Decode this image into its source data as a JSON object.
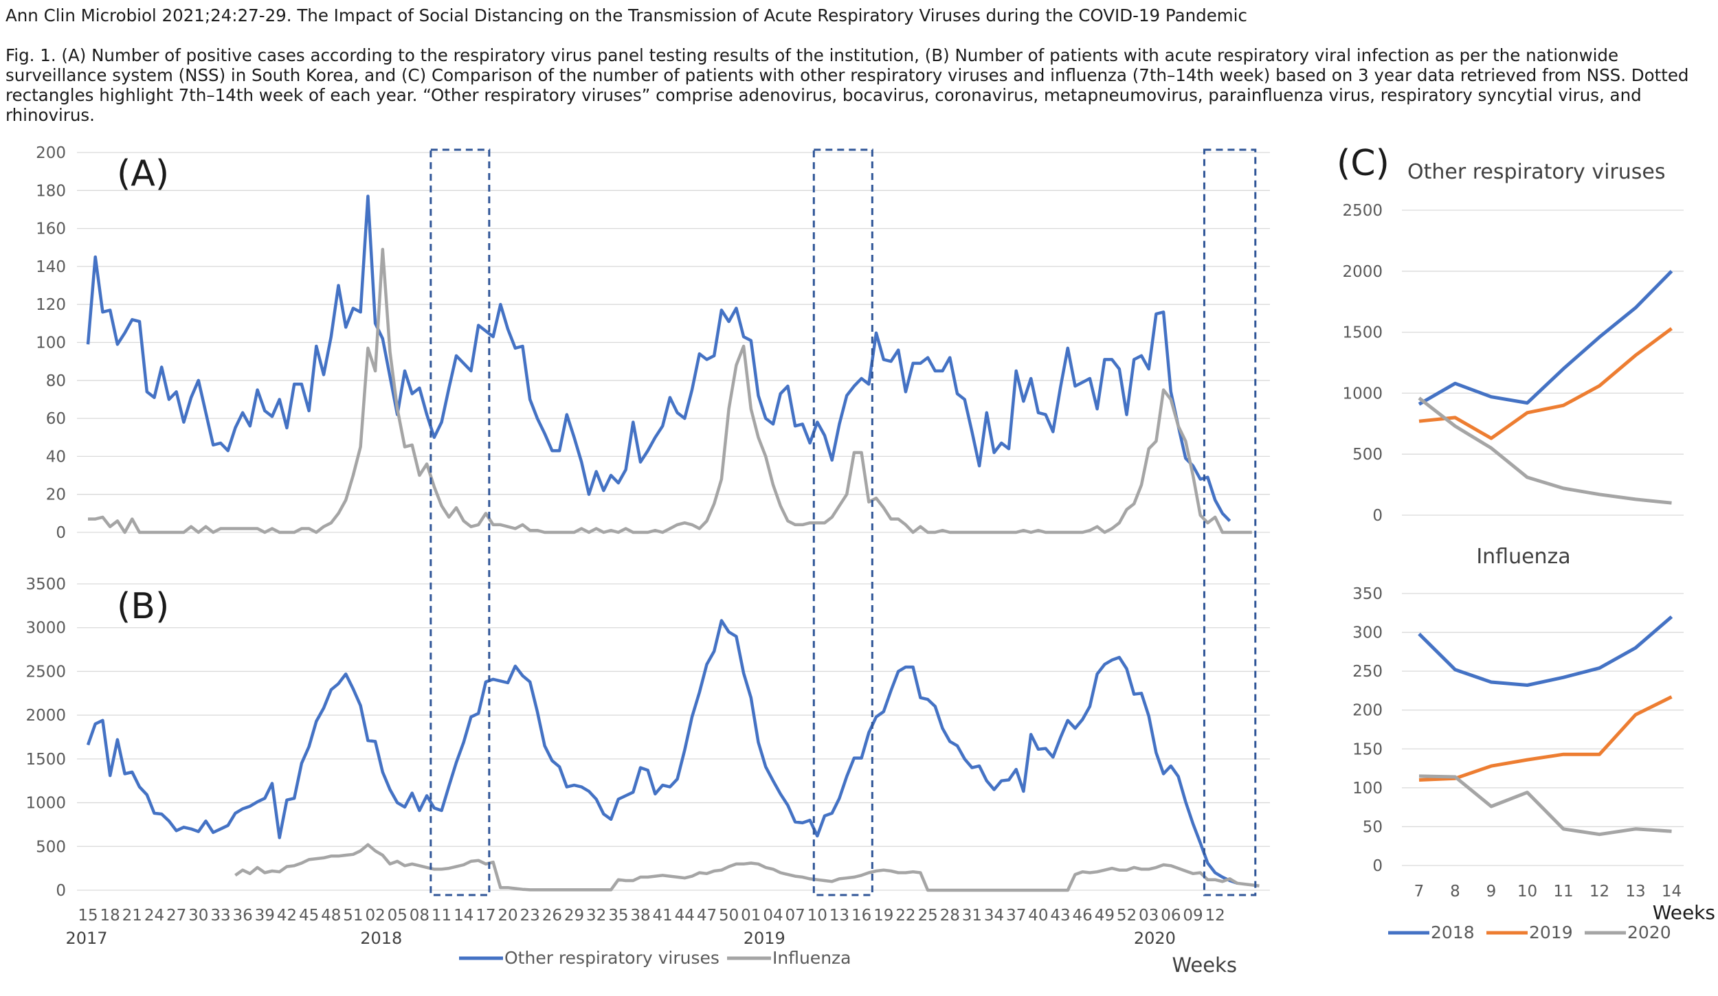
{
  "header": {
    "journal_line": "Ann Clin Microbiol 2021;24:27-29. The Impact of Social Distancing on the Transmission of Acute Respiratory Viruses during the COVID-19 Pandemic",
    "caption": "Fig. 1. (A) Number of positive cases according to the respiratory virus panel testing results of the institution, (B) Number of patients with acute respiratory viral infection as per the nationwide surveillance system (NSS) in South Korea, and (C) Comparison of the number of patients with other respiratory viruses and influenza (7th–14th week) based on 3 year data retrieved from NSS. Dotted rectangles highlight 7th–14th week of each year. “Other respiratory viruses” comprise adenovirus, bocavirus, coronavirus, metapneumovirus, parainfluenza virus, respiratory syncytial virus, and rhinovirus."
  },
  "colors": {
    "other": "#4472c4",
    "influenza": "#a5a5a5",
    "y2018": "#4472c4",
    "y2019": "#ed7d31",
    "y2020": "#a5a5a5",
    "highlight": "#2f5597"
  },
  "legend_ab": {
    "other": "Other respiratory viruses",
    "influenza": "Influenza"
  },
  "axis_x_title": "Weeks",
  "x_week_labels": [
    "15",
    "18",
    "21",
    "24",
    "27",
    "30",
    "33",
    "36",
    "39",
    "42",
    "45",
    "48",
    "51",
    "02",
    "05",
    "08",
    "11",
    "14",
    "17",
    "20",
    "23",
    "26",
    "29",
    "32",
    "35",
    "38",
    "41",
    "44",
    "47",
    "50",
    "01",
    "04",
    "07",
    "10",
    "13",
    "16",
    "19",
    "22",
    "25",
    "28",
    "31",
    "34",
    "37",
    "40",
    "43",
    "46",
    "49",
    "52",
    "03",
    "06",
    "09",
    "12"
  ],
  "x_year_labels": [
    {
      "label": "2017",
      "week_index": 0
    },
    {
      "label": "2018",
      "week_index": 40
    },
    {
      "label": "2019",
      "week_index": 92
    },
    {
      "label": "2020",
      "week_index": 145
    }
  ],
  "highlight_week_ranges": [
    [
      47,
      54
    ],
    [
      99,
      106
    ],
    [
      152,
      158
    ]
  ],
  "chart_data": [
    {
      "type": "line",
      "panel": "(A)",
      "x_start": "2017 week 15",
      "ylim": [
        0,
        200
      ],
      "yticks": [
        0,
        20,
        40,
        60,
        80,
        100,
        120,
        140,
        160,
        180,
        200
      ],
      "series": [
        {
          "name": "Other respiratory viruses",
          "values": [
            99,
            145,
            116,
            117,
            99,
            105,
            112,
            111,
            74,
            71,
            87,
            70,
            74,
            58,
            71,
            80,
            63,
            46,
            47,
            43,
            55,
            63,
            56,
            75,
            64,
            61,
            70,
            55,
            78,
            78,
            64,
            98,
            83,
            103,
            130,
            108,
            118,
            116,
            177,
            110,
            102,
            82,
            62,
            85,
            73,
            76,
            62,
            50,
            58,
            76,
            93,
            89,
            85,
            109,
            106,
            103,
            120,
            107,
            97,
            98,
            70,
            60,
            52,
            43,
            43,
            62,
            50,
            37,
            20,
            32,
            22,
            30,
            26,
            33,
            58,
            37,
            43,
            50,
            56,
            71,
            63,
            60,
            75,
            94,
            91,
            93,
            117,
            111,
            118,
            103,
            101,
            72,
            60,
            57,
            73,
            77,
            56,
            57,
            47,
            58,
            51,
            38,
            57,
            72,
            77,
            81,
            78,
            105,
            91,
            90,
            96,
            74,
            89,
            89,
            92,
            85,
            85,
            92,
            73,
            70,
            53,
            35,
            63,
            42,
            47,
            44,
            85,
            69,
            81,
            63,
            62,
            53,
            76,
            97,
            77,
            79,
            81,
            65,
            91,
            91,
            86,
            62,
            91,
            93,
            86,
            115,
            116,
            74,
            56,
            39,
            35,
            28,
            29,
            17,
            10,
            6
          ]
        },
        {
          "name": "Influenza",
          "values": [
            7,
            7,
            8,
            3,
            6,
            0,
            7,
            0,
            0,
            0,
            0,
            0,
            0,
            0,
            3,
            0,
            3,
            0,
            2,
            2,
            2,
            2,
            2,
            2,
            0,
            2,
            0,
            0,
            0,
            2,
            2,
            0,
            3,
            5,
            10,
            17,
            30,
            45,
            97,
            85,
            149,
            95,
            65,
            45,
            46,
            30,
            36,
            24,
            14,
            8,
            13,
            6,
            3,
            4,
            10,
            4,
            4,
            3,
            2,
            4,
            1,
            1,
            0,
            0,
            0,
            0,
            0,
            2,
            0,
            2,
            0,
            1,
            0,
            2,
            0,
            0,
            0,
            1,
            0,
            2,
            4,
            5,
            4,
            2,
            6,
            15,
            28,
            65,
            88,
            98,
            65,
            50,
            40,
            25,
            14,
            6,
            4,
            4,
            5,
            5,
            5,
            8,
            14,
            20,
            42,
            42,
            16,
            18,
            13,
            7,
            7,
            4,
            0,
            3,
            0,
            0,
            1,
            0,
            0,
            0,
            0,
            0,
            0,
            0,
            0,
            0,
            0,
            1,
            0,
            1,
            0,
            0,
            0,
            0,
            0,
            0,
            1,
            3,
            0,
            2,
            5,
            12,
            15,
            25,
            44,
            48,
            75,
            70,
            56,
            48,
            30,
            9,
            5,
            8,
            0,
            0,
            0,
            0,
            0
          ]
        }
      ]
    },
    {
      "type": "line",
      "panel": "(B)",
      "x_start": "2017 week 15",
      "ylim": [
        0,
        3500
      ],
      "yticks": [
        0,
        500,
        1000,
        1500,
        2000,
        2500,
        3000,
        3500
      ],
      "series": [
        {
          "name": "Other respiratory viruses",
          "values": [
            1660,
            1900,
            1940,
            1310,
            1720,
            1330,
            1350,
            1180,
            1090,
            880,
            870,
            790,
            680,
            720,
            700,
            670,
            790,
            660,
            700,
            740,
            880,
            930,
            960,
            1010,
            1050,
            1220,
            600,
            1030,
            1050,
            1450,
            1640,
            1930,
            2080,
            2290,
            2360,
            2470,
            2300,
            2110,
            1710,
            1700,
            1350,
            1150,
            1000,
            950,
            1110,
            910,
            1080,
            940,
            910,
            1190,
            1460,
            1690,
            1980,
            2020,
            2380,
            2410,
            2390,
            2370,
            2560,
            2450,
            2380,
            2040,
            1650,
            1480,
            1410,
            1180,
            1200,
            1180,
            1130,
            1040,
            870,
            810,
            1040,
            1080,
            1120,
            1400,
            1370,
            1100,
            1200,
            1180,
            1270,
            1600,
            1980,
            2260,
            2580,
            2730,
            3080,
            2950,
            2900,
            2480,
            2200,
            1690,
            1410,
            1250,
            1100,
            970,
            780,
            770,
            800,
            620,
            850,
            880,
            1050,
            1300,
            1510,
            1510,
            1800,
            1980,
            2040,
            2280,
            2500,
            2550,
            2550,
            2200,
            2180,
            2100,
            1850,
            1700,
            1650,
            1500,
            1400,
            1420,
            1250,
            1150,
            1250,
            1260,
            1380,
            1130,
            1780,
            1610,
            1620,
            1520,
            1740,
            1940,
            1850,
            1950,
            2100,
            2470,
            2580,
            2630,
            2660,
            2530,
            2240,
            2250,
            1990,
            1570,
            1330,
            1420,
            1300,
            1010,
            760,
            540,
            310,
            200,
            150,
            110,
            80
          ]
        },
        {
          "name": "Influenza",
          "values": [
            null,
            null,
            null,
            null,
            null,
            null,
            null,
            null,
            null,
            null,
            null,
            null,
            null,
            null,
            null,
            null,
            null,
            null,
            null,
            null,
            170,
            230,
            190,
            260,
            200,
            220,
            210,
            270,
            280,
            310,
            350,
            360,
            370,
            390,
            390,
            400,
            410,
            450,
            520,
            450,
            400,
            300,
            330,
            280,
            300,
            280,
            260,
            240,
            240,
            250,
            270,
            290,
            330,
            340,
            300,
            320,
            30,
            30,
            20,
            10,
            5,
            5,
            5,
            5,
            5,
            5,
            5,
            5,
            5,
            5,
            5,
            5,
            120,
            110,
            110,
            150,
            150,
            160,
            170,
            160,
            150,
            140,
            160,
            200,
            190,
            220,
            230,
            270,
            300,
            300,
            310,
            300,
            260,
            240,
            200,
            180,
            160,
            150,
            130,
            120,
            110,
            100,
            130,
            140,
            150,
            170,
            200,
            220,
            230,
            220,
            200,
            200,
            210,
            200,
            0,
            0,
            0,
            0,
            0,
            0,
            0,
            0,
            0,
            0,
            0,
            0,
            0,
            0,
            0,
            0,
            0,
            0,
            0,
            0,
            180,
            210,
            200,
            210,
            230,
            250,
            230,
            230,
            260,
            240,
            240,
            260,
            290,
            280,
            250,
            220,
            190,
            200,
            120,
            120,
            100,
            130,
            80,
            70,
            60,
            50
          ]
        }
      ]
    },
    {
      "type": "line",
      "panel": "(C)",
      "title": "Other respiratory viruses",
      "xlabel": "Weeks",
      "categories": [
        "7",
        "8",
        "9",
        "10",
        "11",
        "12",
        "13",
        "14"
      ],
      "ylim": [
        0,
        2500
      ],
      "yticks": [
        0,
        500,
        1000,
        1500,
        2000,
        2500
      ],
      "series": [
        {
          "name": "2018",
          "values": [
            910,
            1080,
            970,
            920,
            1200,
            1460,
            1700,
            2000
          ]
        },
        {
          "name": "2019",
          "values": [
            770,
            800,
            630,
            840,
            900,
            1060,
            1310,
            1530
          ]
        },
        {
          "name": "2020",
          "values": [
            960,
            730,
            550,
            310,
            220,
            170,
            130,
            100
          ]
        }
      ]
    },
    {
      "type": "line",
      "panel": "(C)",
      "title": "Influenza",
      "xlabel": "Weeks",
      "categories": [
        "7",
        "8",
        "9",
        "10",
        "11",
        "12",
        "13",
        "14"
      ],
      "ylim": [
        0,
        350
      ],
      "yticks": [
        0,
        50,
        100,
        150,
        200,
        250,
        300,
        350
      ],
      "series": [
        {
          "name": "2018",
          "values": [
            298,
            252,
            236,
            232,
            242,
            254,
            280,
            320
          ]
        },
        {
          "name": "2019",
          "values": [
            110,
            112,
            128,
            136,
            143,
            143,
            194,
            217
          ]
        },
        {
          "name": "2020",
          "values": [
            115,
            114,
            76,
            94,
            47,
            40,
            47,
            44
          ]
        }
      ]
    }
  ]
}
